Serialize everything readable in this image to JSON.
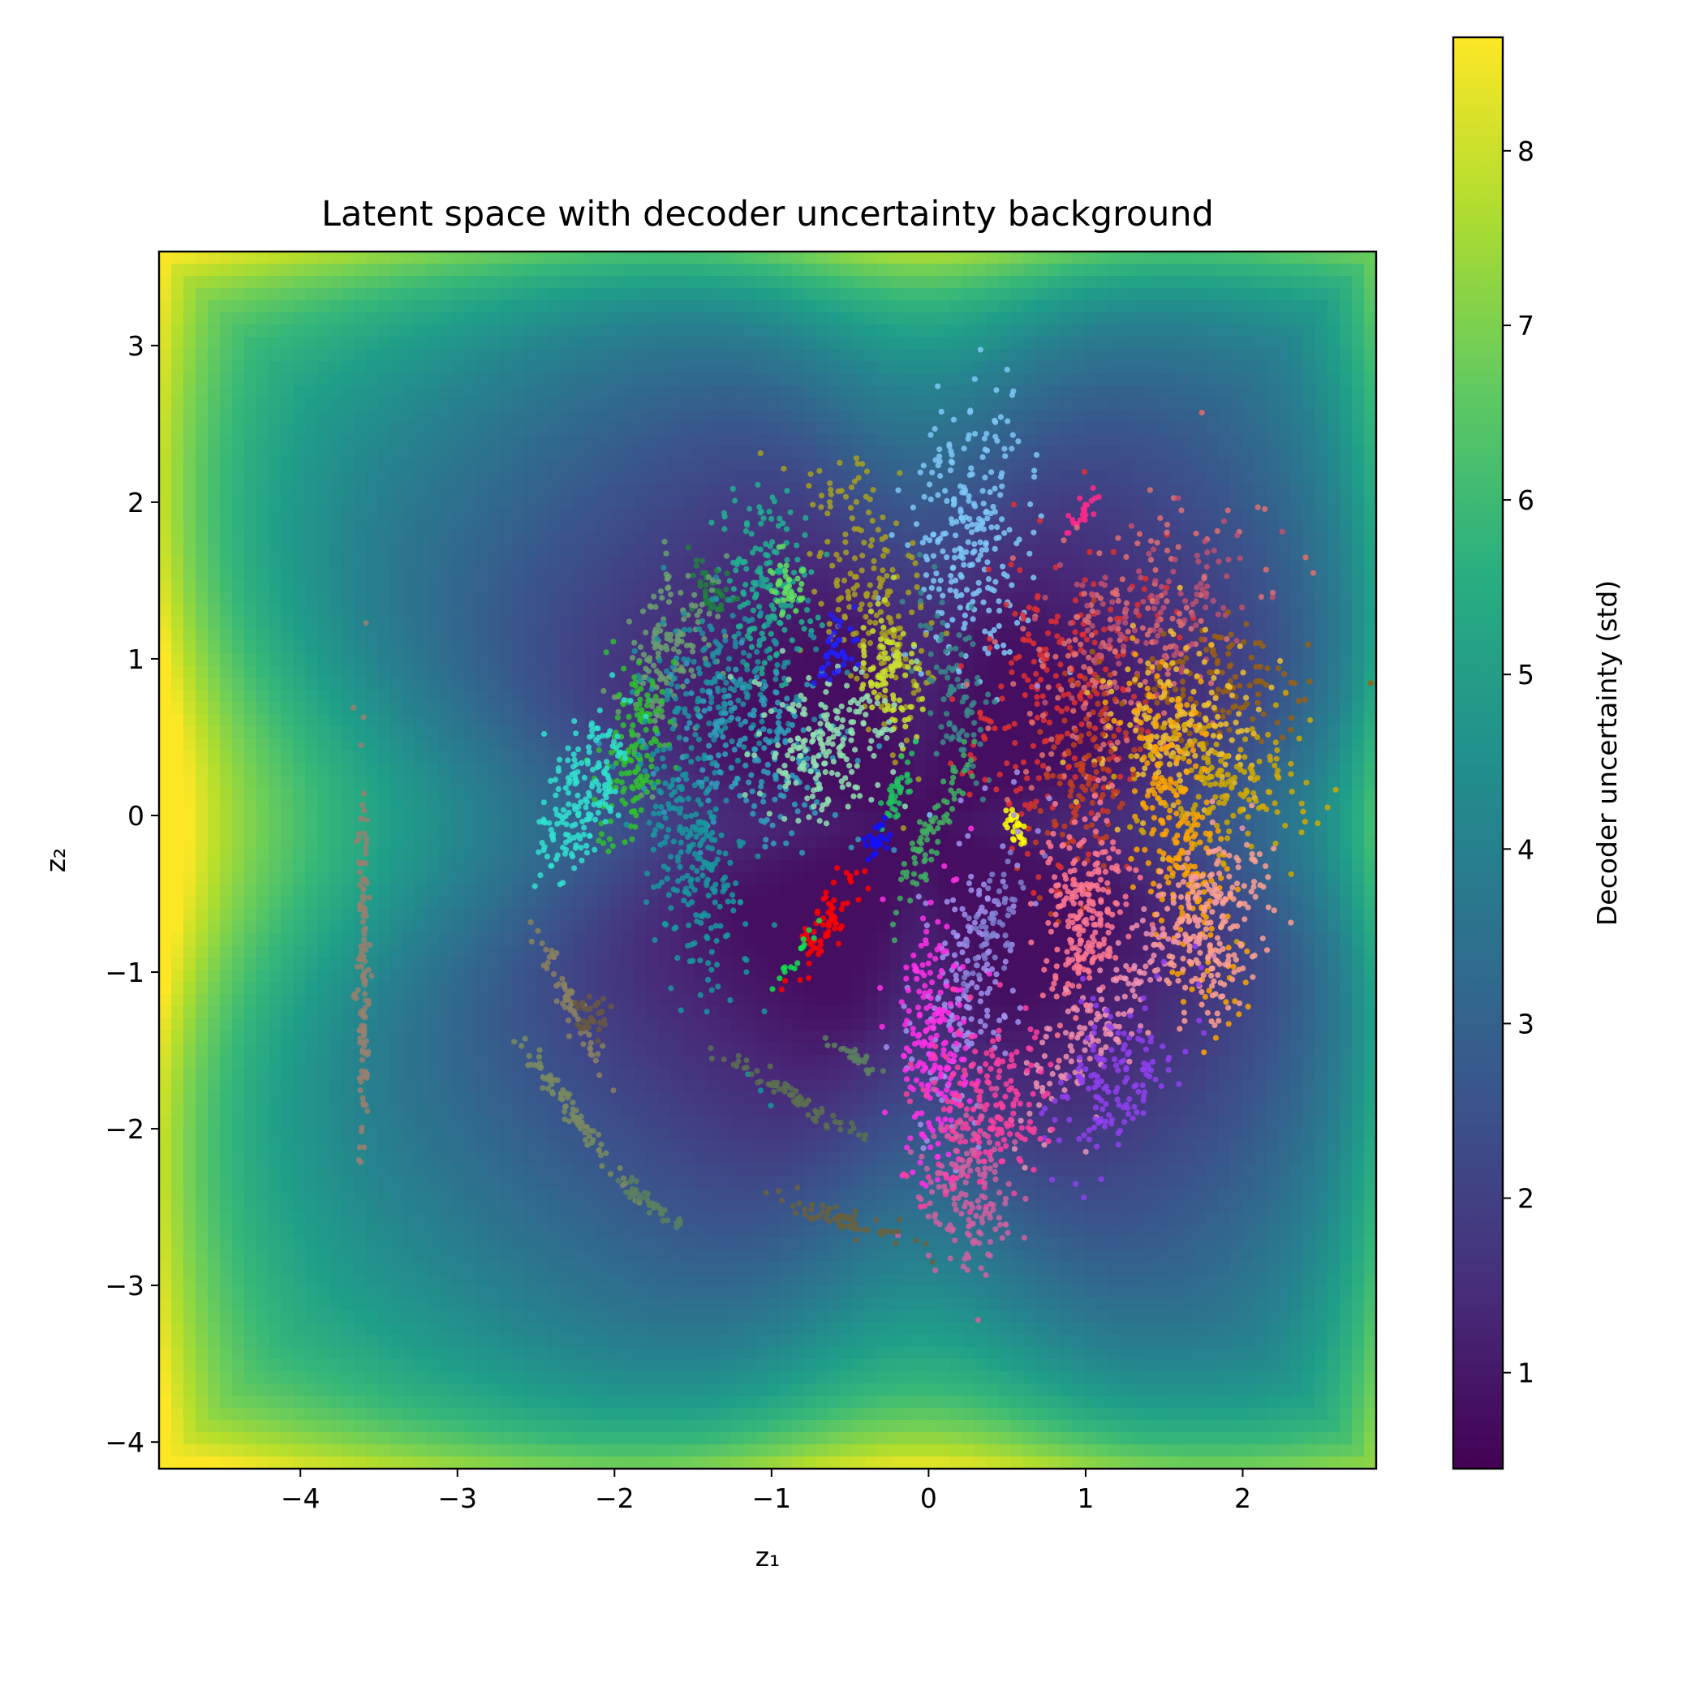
{
  "chart_data": {
    "type": "scatter",
    "title": "Latent space with decoder uncertainty background",
    "xlabel": "z₁",
    "ylabel": "z₂",
    "xlim": [
      -4.9,
      2.85
    ],
    "ylim": [
      -4.17,
      3.6
    ],
    "x_ticks": [
      {
        "value": -4,
        "label": "−4"
      },
      {
        "value": -3,
        "label": "−3"
      },
      {
        "value": -2,
        "label": "−2"
      },
      {
        "value": -1,
        "label": "−1"
      },
      {
        "value": 0,
        "label": "0"
      },
      {
        "value": 1,
        "label": "1"
      },
      {
        "value": 2,
        "label": "2"
      }
    ],
    "y_ticks": [
      {
        "value": 3,
        "label": "3"
      },
      {
        "value": 2,
        "label": "2"
      },
      {
        "value": 1,
        "label": "1"
      },
      {
        "value": 0,
        "label": "0"
      },
      {
        "value": -1,
        "label": "−1"
      },
      {
        "value": -2,
        "label": "−2"
      },
      {
        "value": -3,
        "label": "−3"
      },
      {
        "value": -4,
        "label": "−4"
      }
    ],
    "colorbar": {
      "label": "Decoder uncertainty (std)",
      "colormap": "viridis",
      "range": [
        0.45,
        8.65
      ],
      "ticks": [
        {
          "value": 1,
          "label": "1"
        },
        {
          "value": 2,
          "label": "2"
        },
        {
          "value": 3,
          "label": "3"
        },
        {
          "value": 4,
          "label": "4"
        },
        {
          "value": 5,
          "label": "5"
        },
        {
          "value": 6,
          "label": "6"
        },
        {
          "value": 7,
          "label": "7"
        },
        {
          "value": 8,
          "label": "8"
        }
      ]
    },
    "grid": false,
    "legend": "none",
    "clusters": [
      {
        "color": "#7ec8f8",
        "center": [
          0.3,
          1.8
        ],
        "sx": 0.2,
        "sy": 0.45,
        "angle": 90,
        "n": 260
      },
      {
        "color": "#a8a020",
        "center": [
          -0.35,
          1.35
        ],
        "sx": 0.16,
        "sy": 0.45,
        "angle": 105,
        "n": 220
      },
      {
        "color": "#c8e030",
        "center": [
          -0.25,
          0.9
        ],
        "sx": 0.1,
        "sy": 0.22,
        "angle": 105,
        "n": 90
      },
      {
        "color": "#ff2a8a",
        "center": [
          0.0,
          1.9
        ],
        "sx": 0.04,
        "sy": 0.12,
        "angle": 60,
        "n": 24,
        "offset": [
          0.95,
          0.0
        ]
      },
      {
        "color": "#3a8a8a",
        "center": [
          0.18,
          0.75
        ],
        "sx": 0.08,
        "sy": 0.3,
        "angle": 100,
        "n": 90
      },
      {
        "color": "#e03030",
        "center": [
          0.85,
          0.8
        ],
        "sx": 0.3,
        "sy": 0.45,
        "angle": 80,
        "n": 230
      },
      {
        "color": "#e07070",
        "center": [
          1.2,
          1.1
        ],
        "sx": 0.3,
        "sy": 0.5,
        "angle": 60,
        "n": 200
      },
      {
        "color": "#c05070",
        "center": [
          1.4,
          1.3
        ],
        "sx": 0.25,
        "sy": 0.35,
        "angle": 30,
        "n": 120
      },
      {
        "color": "#9a6010",
        "center": [
          1.8,
          0.85
        ],
        "sx": 0.2,
        "sy": 0.3,
        "angle": 10,
        "n": 130
      },
      {
        "color": "#f0c030",
        "center": [
          1.6,
          0.55
        ],
        "sx": 0.3,
        "sy": 0.25,
        "angle": 10,
        "n": 200
      },
      {
        "color": "#d0a800",
        "center": [
          1.9,
          0.2
        ],
        "sx": 0.25,
        "sy": 0.3,
        "angle": 10,
        "n": 160
      },
      {
        "color": "#ffa500",
        "center": [
          1.6,
          -0.1
        ],
        "sx": 0.5,
        "sy": 0.12,
        "angle": 10,
        "n": 240
      },
      {
        "color": "#c04020",
        "center": [
          1.0,
          0.2
        ],
        "sx": 0.15,
        "sy": 0.35,
        "angle": 80,
        "n": 120
      },
      {
        "color": "#ffff00",
        "center": [
          0.55,
          -0.06
        ],
        "sx": 0.07,
        "sy": 0.025,
        "angle": 20,
        "n": 30
      },
      {
        "color": "#ff7890",
        "center": [
          1.0,
          -0.65
        ],
        "sx": 0.3,
        "sy": 0.14,
        "angle": -5,
        "n": 240
      },
      {
        "color": "#ffa090",
        "center": [
          1.8,
          -0.7
        ],
        "sx": 0.3,
        "sy": 0.17,
        "angle": -10,
        "n": 220
      },
      {
        "color": "#f090b0",
        "center": [
          1.1,
          -1.3
        ],
        "sx": 0.4,
        "sy": 0.12,
        "angle": -35,
        "n": 160
      },
      {
        "color": "#9040f0",
        "center": [
          1.2,
          -1.65
        ],
        "sx": 0.3,
        "sy": 0.16,
        "angle": -30,
        "n": 150
      },
      {
        "color": "#a090f0",
        "center": [
          0.25,
          -1.1
        ],
        "sx": 0.16,
        "sy": 0.5,
        "angle": 80,
        "n": 180
      },
      {
        "color": "#ff30e8",
        "center": [
          0.05,
          -1.45
        ],
        "sx": 0.12,
        "sy": 0.4,
        "angle": 90,
        "n": 200
      },
      {
        "color": "#ff40a0",
        "center": [
          0.35,
          -1.85
        ],
        "sx": 0.2,
        "sy": 0.3,
        "angle": 80,
        "n": 200
      },
      {
        "color": "#d060a0",
        "center": [
          0.25,
          -2.45
        ],
        "sx": 0.15,
        "sy": 0.25,
        "angle": 90,
        "n": 140
      },
      {
        "color": "#8080d0",
        "center": [
          0.4,
          -0.7
        ],
        "sx": 0.22,
        "sy": 0.07,
        "angle": -20,
        "n": 60
      },
      {
        "color": "#20b090",
        "center": [
          -1.0,
          1.45
        ],
        "sx": 0.3,
        "sy": 0.15,
        "angle": 0,
        "n": 160
      },
      {
        "color": "#60e060",
        "center": [
          -0.9,
          1.5
        ],
        "sx": 0.1,
        "sy": 0.06,
        "angle": 0,
        "n": 40
      },
      {
        "color": "#208040",
        "center": [
          -1.4,
          1.45
        ],
        "sx": 0.12,
        "sy": 0.06,
        "angle": 20,
        "n": 40
      },
      {
        "color": "#6aa070",
        "center": [
          -1.65,
          1.05
        ],
        "sx": 0.15,
        "sy": 0.3,
        "angle": 80,
        "n": 150
      },
      {
        "color": "#2090a0",
        "center": [
          -1.3,
          0.85
        ],
        "sx": 0.25,
        "sy": 0.28,
        "angle": 60,
        "n": 200
      },
      {
        "color": "#30a0c0",
        "center": [
          -1.1,
          0.4
        ],
        "sx": 0.3,
        "sy": 0.25,
        "angle": 60,
        "n": 200
      },
      {
        "color": "#90e0b0",
        "center": [
          -0.65,
          0.45
        ],
        "sx": 0.2,
        "sy": 0.25,
        "angle": 70,
        "n": 200
      },
      {
        "color": "#2020ff",
        "center": [
          -0.6,
          1.05
        ],
        "sx": 0.06,
        "sy": 0.1,
        "angle": 70,
        "n": 40
      },
      {
        "color": "#30c030",
        "center": [
          -1.9,
          0.35
        ],
        "sx": 0.3,
        "sy": 0.1,
        "angle": -10,
        "n": 150
      },
      {
        "color": "#30e0d0",
        "center": [
          -2.2,
          0.15
        ],
        "sx": 0.28,
        "sy": 0.12,
        "angle": -20,
        "n": 180
      },
      {
        "color": "#1898a0",
        "center": [
          -1.5,
          -0.25
        ],
        "sx": 0.45,
        "sy": 0.15,
        "angle": 10,
        "n": 250
      },
      {
        "color": "#20c060",
        "center": [
          -0.2,
          0.15
        ],
        "sx": 0.04,
        "sy": 0.15,
        "angle": 70,
        "n": 40
      },
      {
        "color": "#1010ff",
        "center": [
          -0.33,
          -0.15
        ],
        "sx": 0.04,
        "sy": 0.06,
        "angle": 70,
        "n": 25
      },
      {
        "color": "#40b060",
        "center": [
          0.0,
          -0.15
        ],
        "sx": 0.05,
        "sy": 0.3,
        "angle": 65,
        "n": 80
      },
      {
        "color": "#ff0000",
        "center": [
          -0.65,
          -0.68
        ],
        "sx": 0.05,
        "sy": 0.18,
        "angle": 60,
        "n": 70
      },
      {
        "color": "#10e050",
        "center": [
          -0.85,
          -0.92
        ],
        "sx": 0.025,
        "sy": 0.12,
        "angle": 55,
        "n": 16
      },
      {
        "color": "#988070",
        "center": [
          -3.6,
          -0.93
        ],
        "sx": 0.6,
        "sy": 0.02,
        "angle": 0,
        "n": 130
      },
      {
        "color": "#8a8060",
        "center": [
          -2.3,
          -1.15
        ],
        "sx": 0.25,
        "sy": 0.03,
        "angle": 25,
        "n": 60
      },
      {
        "color": "#6a5840",
        "center": [
          -2.15,
          -1.3
        ],
        "sx": 0.08,
        "sy": 0.08,
        "angle": 0,
        "n": 30
      },
      {
        "color": "#7a8a60",
        "center": [
          -2.3,
          -1.85
        ],
        "sx": 0.3,
        "sy": 0.03,
        "angle": 35,
        "n": 80
      },
      {
        "color": "#5a7050",
        "center": [
          -0.85,
          -1.8
        ],
        "sx": 0.3,
        "sy": 0.03,
        "angle": 60,
        "n": 70
      },
      {
        "color": "#5a8060",
        "center": [
          -0.45,
          -1.55
        ],
        "sx": 0.12,
        "sy": 0.03,
        "angle": 60,
        "n": 25
      },
      {
        "color": "#5a8060",
        "center": [
          -1.8,
          -2.45
        ],
        "sx": 0.15,
        "sy": 0.025,
        "angle": 50,
        "n": 40
      },
      {
        "color": "#6a6040",
        "center": [
          -0.5,
          -2.6
        ],
        "sx": 0.22,
        "sy": 0.04,
        "angle": 75,
        "n": 60
      }
    ]
  }
}
